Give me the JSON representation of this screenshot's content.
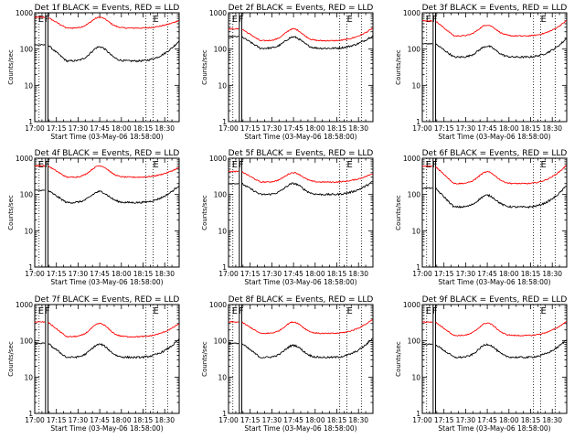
{
  "chart_data": {
    "type": "line",
    "layout": "3x3 grid",
    "xlabel": "Start Time (03-May-06 18:58:00)",
    "ylabel": "Counts/sec",
    "yscale": "log",
    "ylim": [
      1,
      1000
    ],
    "y_tick_labels": [
      "1",
      "10",
      "100",
      "1000"
    ],
    "xlim_min": [
      0,
      100
    ],
    "x_tick_labels": [
      "17:00",
      "17:15",
      "17:30",
      "17:45",
      "18:00",
      "18:15",
      "18:30"
    ],
    "x_tick_values_min": [
      0,
      15,
      30,
      45,
      60,
      75,
      90
    ],
    "series_colors": {
      "events": "#000000",
      "lld": "#ff0000"
    },
    "flag_labels": {
      "eclipse": "E",
      "saa": "F"
    },
    "eclipse_min": [
      3,
      82
    ],
    "saa_solid_min": [
      7.5,
      9.2
    ],
    "dotted_lines_min": [
      77,
      92
    ],
    "panels": [
      {
        "title": "Det 1f BLACK = Events, RED = LLD",
        "events_base": 47,
        "events_peak": 115,
        "lld_base": 380,
        "lld_peak": 750,
        "early_events": 130,
        "early_lld": 750,
        "end_events": 170,
        "end_lld": 620
      },
      {
        "title": "Det 2f BLACK = Events, RED = LLD",
        "events_base": 105,
        "events_peak": 215,
        "lld_base": 170,
        "lld_peak": 360,
        "early_events": 220,
        "early_lld": 360,
        "end_events": 240,
        "end_lld": 380
      },
      {
        "title": "Det 3f BLACK = Events, RED = LLD",
        "events_base": 60,
        "events_peak": 120,
        "lld_base": 230,
        "lld_peak": 460,
        "early_events": 140,
        "early_lld": 600,
        "end_events": 200,
        "end_lld": 620
      },
      {
        "title": "Det 4f BLACK = Events, RED = LLD",
        "events_base": 60,
        "events_peak": 120,
        "lld_base": 300,
        "lld_peak": 620,
        "early_events": 130,
        "early_lld": 620,
        "end_events": 180,
        "end_lld": 560
      },
      {
        "title": "Det 5f BLACK = Events, RED = LLD",
        "events_base": 100,
        "events_peak": 200,
        "lld_base": 220,
        "lld_peak": 400,
        "early_events": 200,
        "early_lld": 430,
        "end_events": 230,
        "end_lld": 380
      },
      {
        "title": "Det 6f BLACK = Events, RED = LLD",
        "events_base": 45,
        "events_peak": 95,
        "lld_base": 200,
        "lld_peak": 420,
        "early_events": 150,
        "early_lld": 600,
        "end_events": 180,
        "end_lld": 650
      },
      {
        "title": "Det 7f BLACK = Events, RED = LLD",
        "events_base": 35,
        "events_peak": 80,
        "lld_base": 130,
        "lld_peak": 300,
        "early_events": 85,
        "early_lld": 330,
        "end_events": 110,
        "end_lld": 300
      },
      {
        "title": "Det 8f BLACK = Events, RED = LLD",
        "events_base": 35,
        "events_peak": 75,
        "lld_base": 160,
        "lld_peak": 330,
        "early_events": 85,
        "early_lld": 330,
        "end_events": 120,
        "end_lld": 400
      },
      {
        "title": "Det 9f BLACK = Events, RED = LLD",
        "events_base": 35,
        "events_peak": 80,
        "lld_base": 140,
        "lld_peak": 310,
        "early_events": 80,
        "early_lld": 330,
        "end_events": 110,
        "end_lld": 350
      }
    ]
  }
}
